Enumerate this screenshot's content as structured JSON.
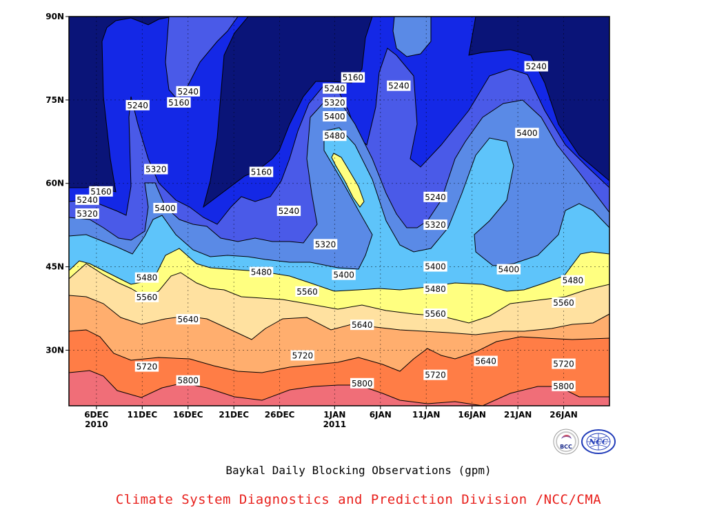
{
  "chart_data": {
    "type": "contour",
    "title": "Baykal Daily Blocking Observations (gpm)",
    "x_ticks": [
      {
        "label": "6DEC",
        "sub": "2010",
        "day": 5
      },
      {
        "label": "11DEC",
        "sub": "",
        "day": 10
      },
      {
        "label": "16DEC",
        "sub": "",
        "day": 15
      },
      {
        "label": "21DEC",
        "sub": "",
        "day": 20
      },
      {
        "label": "26DEC",
        "sub": "",
        "day": 25
      },
      {
        "label": "1JAN",
        "sub": "2011",
        "day": 31
      },
      {
        "label": "6JAN",
        "sub": "",
        "day": 36
      },
      {
        "label": "11JAN",
        "sub": "",
        "day": 41
      },
      {
        "label": "16JAN",
        "sub": "",
        "day": 46
      },
      {
        "label": "21JAN",
        "sub": "",
        "day": 51
      },
      {
        "label": "26JAN",
        "sub": "",
        "day": 56
      }
    ],
    "y_ticks": [
      {
        "label": "30N",
        "lat": 30
      },
      {
        "label": "45N",
        "lat": 45
      },
      {
        "label": "60N",
        "lat": 60
      },
      {
        "label": "75N",
        "lat": 75
      },
      {
        "label": "90N",
        "lat": 90
      }
    ],
    "x_range_days": [
      2,
      61
    ],
    "y_range_lat": [
      20,
      90
    ],
    "grid": true,
    "levels": [
      5160,
      5240,
      5320,
      5400,
      5480,
      5560,
      5640,
      5720,
      5800
    ],
    "fill_colors": [
      "#0a1478",
      "#1428e6",
      "#4a5ae8",
      "#5a8ae6",
      "#5ec4fa",
      "#ffff80",
      "#ffe1a0",
      "#ffae6e",
      "#ff7d46",
      "#f06e78"
    ],
    "contour_labels": [
      {
        "value": 5160,
        "day": 5.5,
        "lat": 58.5
      },
      {
        "value": 5240,
        "day": 4,
        "lat": 57
      },
      {
        "value": 5320,
        "day": 4,
        "lat": 54.5
      },
      {
        "value": 5240,
        "day": 9.5,
        "lat": 74
      },
      {
        "value": 5160,
        "day": 14,
        "lat": 74.5
      },
      {
        "value": 5240,
        "day": 15,
        "lat": 76.5
      },
      {
        "value": 5320,
        "day": 11.5,
        "lat": 62.5
      },
      {
        "value": 5400,
        "day": 12.5,
        "lat": 55.5
      },
      {
        "value": 5160,
        "day": 23,
        "lat": 62
      },
      {
        "value": 5240,
        "day": 26,
        "lat": 55
      },
      {
        "value": 5160,
        "day": 33,
        "lat": 79
      },
      {
        "value": 5240,
        "day": 31,
        "lat": 77
      },
      {
        "value": 5320,
        "day": 31,
        "lat": 74.5
      },
      {
        "value": 5400,
        "day": 31,
        "lat": 72
      },
      {
        "value": 5480,
        "day": 31,
        "lat": 68.5
      },
      {
        "value": 5240,
        "day": 38,
        "lat": 77.5
      },
      {
        "value": 5320,
        "day": 30,
        "lat": 49
      },
      {
        "value": 5400,
        "day": 32,
        "lat": 43.5
      },
      {
        "value": 5240,
        "day": 42,
        "lat": 57.5
      },
      {
        "value": 5320,
        "day": 42,
        "lat": 52.5
      },
      {
        "value": 5400,
        "day": 42,
        "lat": 45
      },
      {
        "value": 5400,
        "day": 52,
        "lat": 69
      },
      {
        "value": 5400,
        "day": 50,
        "lat": 44.5
      },
      {
        "value": 5240,
        "day": 53,
        "lat": 81
      },
      {
        "value": 5480,
        "day": 10.5,
        "lat": 43
      },
      {
        "value": 5560,
        "day": 10.5,
        "lat": 39.5
      },
      {
        "value": 5480,
        "day": 23,
        "lat": 44
      },
      {
        "value": 5560,
        "day": 28,
        "lat": 40.5
      },
      {
        "value": 5480,
        "day": 42,
        "lat": 41
      },
      {
        "value": 5560,
        "day": 42,
        "lat": 36.5
      },
      {
        "value": 5480,
        "day": 57,
        "lat": 42.5
      },
      {
        "value": 5560,
        "day": 56,
        "lat": 38.5
      },
      {
        "value": 5640,
        "day": 15,
        "lat": 35.5
      },
      {
        "value": 5640,
        "day": 34,
        "lat": 34.5
      },
      {
        "value": 5640,
        "day": 47.5,
        "lat": 28
      },
      {
        "value": 5720,
        "day": 10.5,
        "lat": 27
      },
      {
        "value": 5720,
        "day": 27.5,
        "lat": 29
      },
      {
        "value": 5720,
        "day": 42,
        "lat": 25.5
      },
      {
        "value": 5720,
        "day": 56,
        "lat": 27.5
      },
      {
        "value": 5800,
        "day": 15,
        "lat": 24.5
      },
      {
        "value": 5800,
        "day": 34,
        "lat": 24
      },
      {
        "value": 5800,
        "day": 56,
        "lat": 23.5
      }
    ]
  },
  "caption": {
    "title": "Baykal Daily Blocking Observations (gpm)",
    "org": "Climate System Diagnostics and Prediction Division /NCC/CMA"
  },
  "logos": [
    {
      "name": "bcc-logo",
      "text": "BCC"
    },
    {
      "name": "ncc-logo",
      "text": "NCC"
    }
  ]
}
